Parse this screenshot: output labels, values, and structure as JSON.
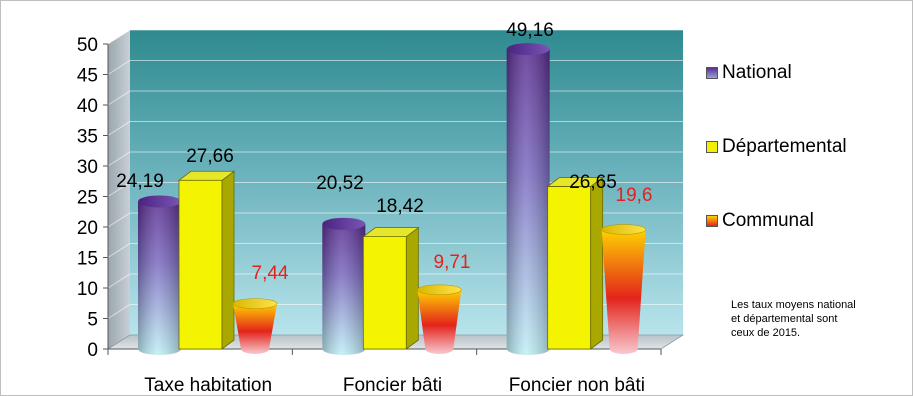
{
  "chart_data": {
    "type": "bar",
    "categories": [
      "Taxe habitation",
      "Foncier bâti",
      "Foncier non bâti"
    ],
    "series": [
      {
        "name": "National",
        "values": [
          24.19,
          20.52,
          49.16
        ],
        "labels": [
          "24,19",
          "20,52",
          "49,16"
        ],
        "color": "#6a3d9a",
        "label_color": "#000000"
      },
      {
        "name": "Départemental",
        "values": [
          27.66,
          18.42,
          26.65
        ],
        "labels": [
          "27,66",
          "18,42",
          "26,65"
        ],
        "color": "#f2f200",
        "label_color": "#000000"
      },
      {
        "name": "Communal",
        "values": [
          7.44,
          9.71,
          19.6
        ],
        "labels": [
          "7,44",
          "9,71",
          "19,6"
        ],
        "color": "#e8201a",
        "label_color": "#e8201a"
      }
    ],
    "yticks": [
      "0",
      "5",
      "10",
      "15",
      "20",
      "25",
      "30",
      "35",
      "40",
      "45",
      "50"
    ],
    "ylim": [
      0,
      50
    ],
    "grid": true,
    "legend_position": "right"
  },
  "note_lines": [
    "Les taux moyens national",
    "et départemental sont",
    "ceux de 2015."
  ]
}
